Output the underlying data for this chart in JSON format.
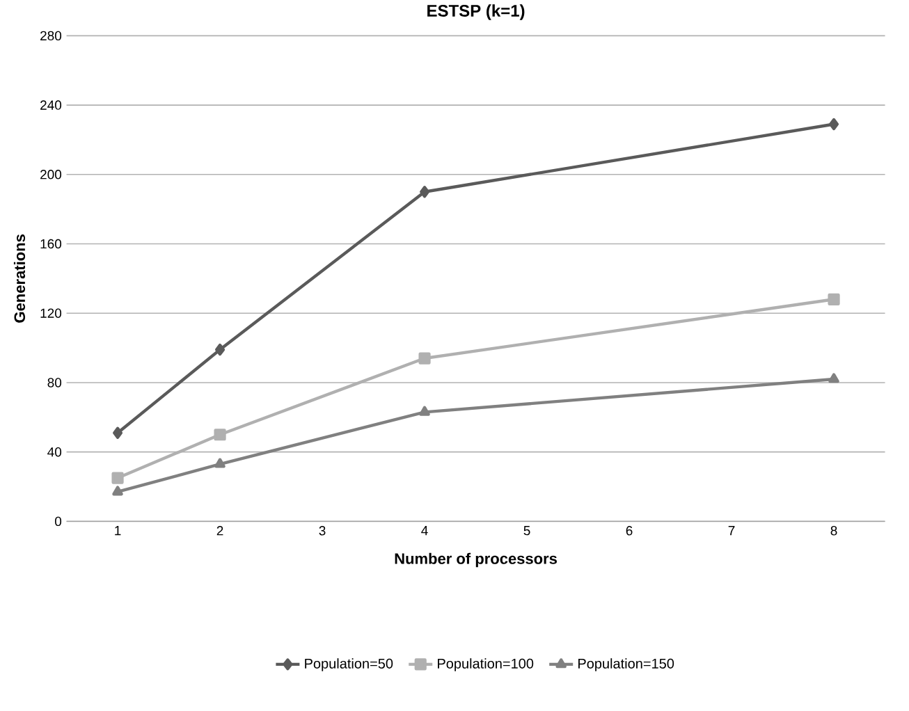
{
  "chart_data": {
    "type": "line",
    "title": "ESTSP (k=1)",
    "xlabel": "Number of processors",
    "ylabel": "Generations",
    "x": [
      1,
      2,
      4,
      8
    ],
    "xlim": [
      0.5,
      8.5
    ],
    "xticks": [
      1,
      2,
      3,
      4,
      5,
      6,
      7,
      8
    ],
    "ylim": [
      0,
      280
    ],
    "yticks": [
      0,
      40,
      80,
      120,
      160,
      200,
      240,
      280
    ],
    "grid": "y",
    "legend": "bottom",
    "line_style": "solid",
    "series": [
      {
        "name": "Population=50",
        "color": "#5a5a5a",
        "marker": "diamond",
        "values": [
          51,
          99,
          190,
          229
        ]
      },
      {
        "name": "Population=100",
        "color": "#b0b0b0",
        "marker": "square",
        "values": [
          25,
          50,
          94,
          128
        ]
      },
      {
        "name": "Population=150",
        "color": "#808080",
        "marker": "triangle",
        "values": [
          17,
          33,
          63,
          82
        ]
      }
    ]
  }
}
